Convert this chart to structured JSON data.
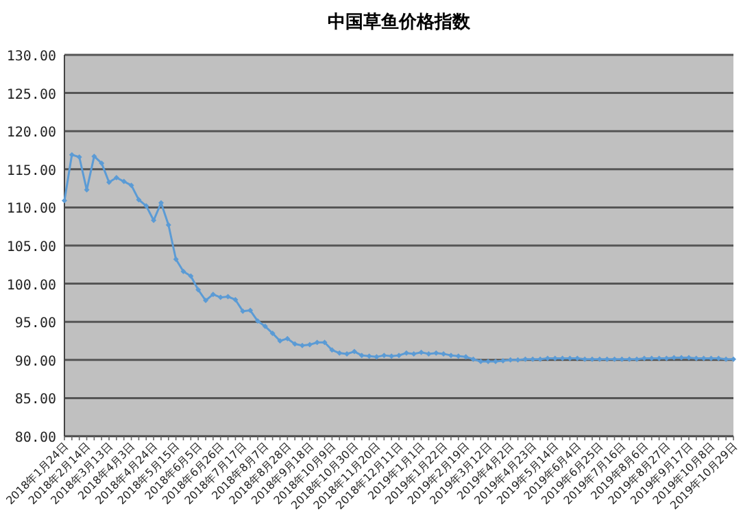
{
  "chart_data": {
    "type": "line",
    "title": "中国草鱼价格指数",
    "categories": [
      "2018年1月24日",
      null,
      null,
      "2018年2月14日",
      null,
      null,
      "2018年3月13日",
      null,
      null,
      "2018年4月3日",
      null,
      null,
      "2018年4月24日",
      null,
      null,
      "2018年5月15日",
      null,
      null,
      "2018年6月5日",
      null,
      null,
      "2018年6月26日",
      null,
      null,
      "2018年7月17日",
      null,
      null,
      "2018年8月7日",
      null,
      null,
      "2018年8月28日",
      null,
      null,
      "2018年9月18日",
      null,
      null,
      "2018年10月9日",
      null,
      null,
      "2018年10月30日",
      null,
      null,
      "2018年11月20日",
      null,
      null,
      "2018年12月11日",
      null,
      null,
      "2019年1月1日",
      null,
      null,
      "2019年1月22日",
      null,
      null,
      "2019年2月19日",
      null,
      null,
      "2019年3月12日",
      null,
      null,
      "2019年4月2日",
      null,
      null,
      "2019年4月23日",
      null,
      null,
      "2019年5月14日",
      null,
      null,
      "2019年6月4日",
      null,
      null,
      "2019年6月25日",
      null,
      null,
      "2019年7月16日",
      null,
      null,
      "2019年8月6日",
      null,
      null,
      "2019年8月27日",
      null,
      null,
      "2019年9月17日",
      null,
      null,
      "2019年10月8日",
      null,
      null,
      "2019年10月29日"
    ],
    "series": [
      {
        "color": "#5b9bd5",
        "values": [
          110.9,
          116.9,
          116.6,
          112.3,
          116.7,
          115.8,
          113.3,
          113.9,
          113.4,
          112.9,
          111.0,
          110.2,
          108.3,
          110.6,
          107.7,
          103.2,
          101.6,
          101.0,
          99.2,
          97.8,
          98.6,
          98.2,
          98.3,
          97.9,
          96.4,
          96.5,
          95.1,
          94.4,
          93.5,
          92.5,
          92.8,
          92.1,
          91.9,
          92.0,
          92.3,
          92.3,
          91.3,
          90.9,
          90.8,
          91.1,
          90.6,
          90.5,
          90.4,
          90.6,
          90.5,
          90.6,
          90.9,
          90.8,
          91.0,
          90.8,
          90.9,
          90.8,
          90.6,
          90.5,
          90.4,
          90.1,
          89.8,
          89.8,
          89.8,
          89.9,
          90.0,
          90.0,
          90.1,
          90.1,
          90.1,
          90.2,
          90.2,
          90.2,
          90.2,
          90.2,
          90.1,
          90.1,
          90.1,
          90.1,
          90.1,
          90.1,
          90.1,
          90.1,
          90.2,
          90.2,
          90.2,
          90.2,
          90.3,
          90.3,
          90.3,
          90.2,
          90.2,
          90.2,
          90.2,
          90.1,
          90.1
        ]
      }
    ],
    "ylim": [
      80,
      130
    ],
    "yticks": [
      {
        "value": 80,
        "label": "80.00"
      },
      {
        "value": 85,
        "label": "85.00"
      },
      {
        "value": 90,
        "label": "90.00"
      },
      {
        "value": 95,
        "label": "95.00"
      },
      {
        "value": 100,
        "label": "100.00"
      },
      {
        "value": 105,
        "label": "105.00"
      },
      {
        "value": 110,
        "label": "110.00"
      },
      {
        "value": 115,
        "label": "115.00"
      },
      {
        "value": 120,
        "label": "120.00"
      },
      {
        "value": 125,
        "label": "125.00"
      },
      {
        "value": 130,
        "label": "130.00"
      }
    ],
    "grid": "y",
    "marker": "diamond",
    "line_style": "solid"
  }
}
